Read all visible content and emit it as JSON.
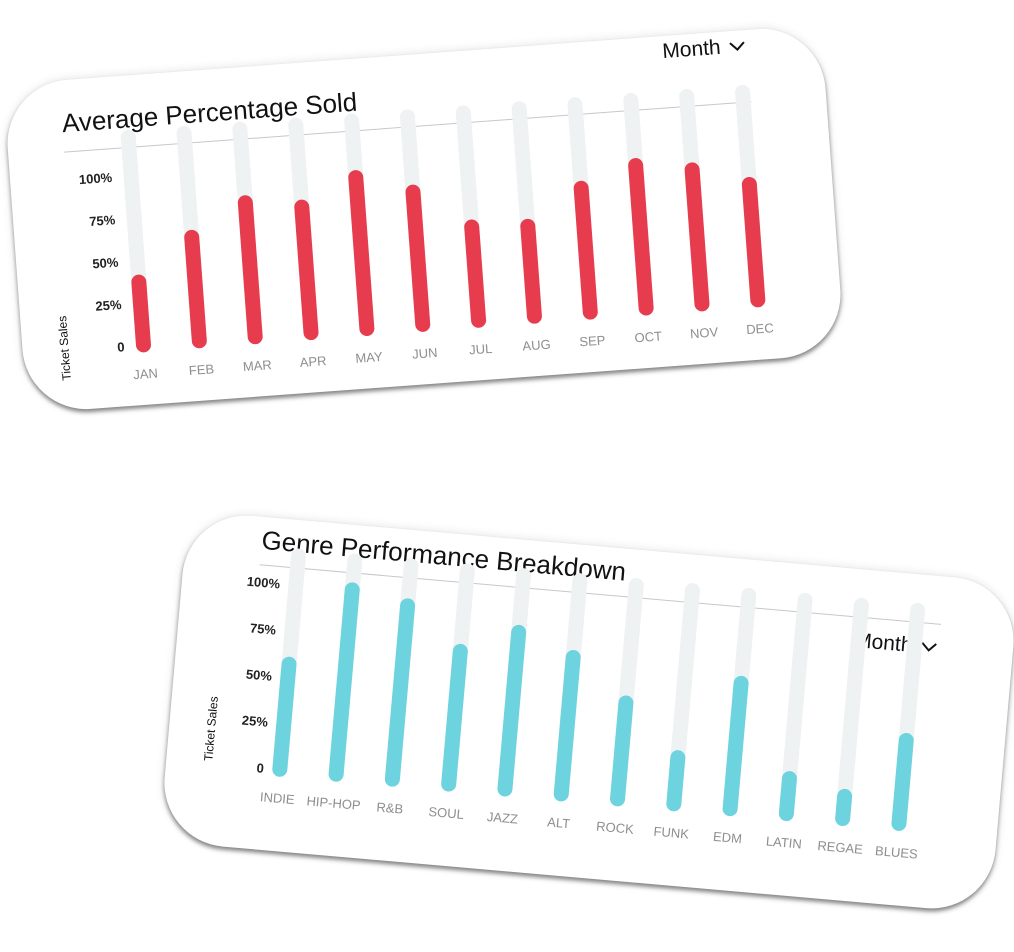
{
  "charts": [
    {
      "id": "avg-percentage",
      "title": "Average Percentage Sold",
      "dropdown": {
        "label": "Month",
        "icon": "chevron-down-icon"
      },
      "ylabel": "Ticket Sales",
      "yticks": [
        "0",
        "25%",
        "50%",
        "75%",
        "100%"
      ],
      "colors": {
        "bar": "#e73c4e",
        "track": "#eef2f3"
      }
    },
    {
      "id": "genre-performance",
      "title": "Genre Performance Breakdown",
      "dropdown": {
        "label": "Month",
        "icon": "chevron-down-icon"
      },
      "ylabel": "Ticket Sales",
      "yticks": [
        "0",
        "25%",
        "50%",
        "75%",
        "100%"
      ],
      "colors": {
        "bar": "#6dd3df",
        "track": "#eef2f3"
      }
    }
  ],
  "chart_data": [
    {
      "type": "bar",
      "title": "Average Percentage Sold",
      "xlabel": "",
      "ylabel": "Ticket Sales",
      "ylim": [
        0,
        100
      ],
      "yticks": [
        "0",
        "25%",
        "50%",
        "75%",
        "100%"
      ],
      "categories": [
        "JAN",
        "FEB",
        "MAR",
        "APR",
        "MAY",
        "JUN",
        "JUL",
        "AUG",
        "SEP",
        "OCT",
        "NOV",
        "DEC"
      ],
      "values": [
        37,
        61,
        79,
        74,
        89,
        78,
        55,
        53,
        73,
        84,
        79,
        68
      ],
      "grid": false,
      "legend": "none"
    },
    {
      "type": "bar",
      "title": "Genre Performance Breakdown",
      "xlabel": "",
      "ylabel": "Ticket Sales",
      "ylim": [
        0,
        100
      ],
      "yticks": [
        "0",
        "25%",
        "50%",
        "75%",
        "100%"
      ],
      "categories": [
        "INDIE",
        "HIP-HOP",
        "R&B",
        "SOUL",
        "JAZZ",
        "ALT",
        "ROCK",
        "FUNK",
        "EDM",
        "LATIN",
        "REGAE",
        "BLUES"
      ],
      "values": [
        57,
        100,
        94,
        72,
        85,
        74,
        52,
        25,
        68,
        19,
        12,
        45
      ],
      "grid": false,
      "legend": "none"
    }
  ]
}
